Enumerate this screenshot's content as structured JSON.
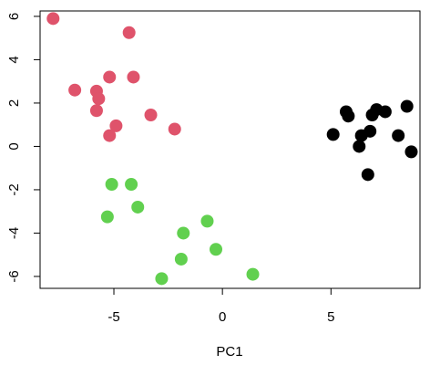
{
  "chart_data": {
    "type": "scatter",
    "title": "",
    "xlabel": "PC1",
    "ylabel": "",
    "xlim": [
      -8.4,
      9.1
    ],
    "ylim": [
      -6.55,
      6.25
    ],
    "x_ticks": [
      -5,
      0,
      5
    ],
    "y_ticks": [
      -6,
      -4,
      -2,
      0,
      2,
      4,
      6
    ],
    "x_tick_labels": [
      "-5",
      "0",
      "5"
    ],
    "y_tick_labels": [
      "-6",
      "-4",
      "-2",
      "0",
      "2",
      "4",
      "6"
    ],
    "grid": false,
    "legend": "none",
    "series": [
      {
        "color": "#DF536B",
        "points": [
          [
            -7.8,
            5.9
          ],
          [
            -4.3,
            5.25
          ],
          [
            -6.8,
            2.6
          ],
          [
            -5.8,
            2.55
          ],
          [
            -5.2,
            3.2
          ],
          [
            -4.1,
            3.2
          ],
          [
            -5.7,
            2.2
          ],
          [
            -5.8,
            1.65
          ],
          [
            -4.9,
            0.95
          ],
          [
            -3.3,
            1.45
          ],
          [
            -5.2,
            0.5
          ],
          [
            -2.2,
            0.8
          ]
        ]
      },
      {
        "color": "#61D04F",
        "points": [
          [
            -5.1,
            -1.75
          ],
          [
            -4.2,
            -1.75
          ],
          [
            -5.3,
            -3.25
          ],
          [
            -3.9,
            -2.8
          ],
          [
            -1.8,
            -4.0
          ],
          [
            -0.7,
            -3.45
          ],
          [
            -1.9,
            -5.2
          ],
          [
            -0.3,
            -4.75
          ],
          [
            -2.8,
            -6.1
          ],
          [
            1.4,
            -5.9
          ]
        ]
      },
      {
        "color": "#000000",
        "points": [
          [
            5.1,
            0.55
          ],
          [
            5.7,
            1.6
          ],
          [
            5.8,
            1.4
          ],
          [
            6.3,
            0.0
          ],
          [
            6.4,
            0.5
          ],
          [
            6.8,
            0.7
          ],
          [
            6.9,
            1.45
          ],
          [
            7.1,
            1.7
          ],
          [
            7.5,
            1.6
          ],
          [
            6.7,
            -1.3
          ],
          [
            8.1,
            0.5
          ],
          [
            8.5,
            1.85
          ],
          [
            8.7,
            -0.25
          ]
        ]
      }
    ]
  }
}
